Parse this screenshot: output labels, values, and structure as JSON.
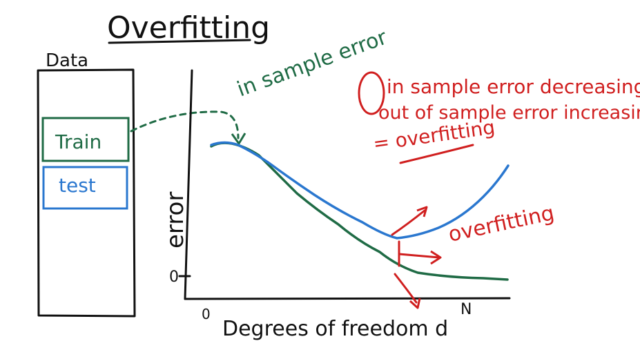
{
  "title": "Overfitting",
  "data_panel": {
    "label": "Data",
    "train_label": "Train",
    "test_label": "test"
  },
  "graph": {
    "y_label": "error",
    "y_zero": "0",
    "x_zero": "0",
    "x_label": "Degrees of freedom d",
    "x_end": "N",
    "train_curve_label": "in sample error",
    "overfit_region_label": "overfitting"
  },
  "notes": {
    "line1": "in sample error decreasing",
    "line2": "out of sample error increasing",
    "line3": "= overfitting"
  },
  "colors": {
    "ink": "#111111",
    "train": "#1f6b45",
    "test": "#2a77cf",
    "annotation": "#d01f1f"
  }
}
